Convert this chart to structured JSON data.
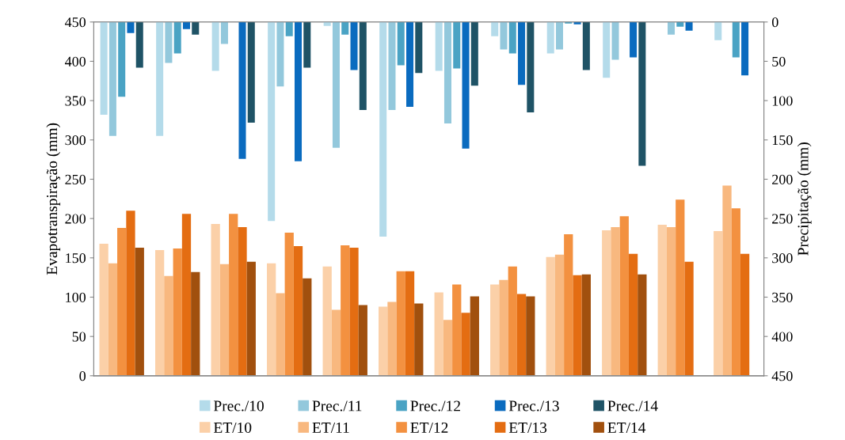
{
  "chart_data": {
    "type": "bar",
    "categories": [
      null,
      null,
      null,
      null,
      null,
      null,
      null,
      null,
      null,
      null,
      null,
      null
    ],
    "ylabel": "Evapotranspiração (mm)",
    "y2label": "Precipitação (mm)",
    "ylim": [
      0,
      450
    ],
    "yticks": [
      0,
      50,
      100,
      150,
      200,
      250,
      300,
      350,
      400,
      450
    ],
    "y2lim": [
      450,
      0
    ],
    "y2ticks": [
      0,
      50,
      100,
      150,
      200,
      250,
      300,
      350,
      400,
      450
    ],
    "tick_labels": "y",
    "grid": false,
    "legend": "bottom",
    "series": [
      {
        "name": "Prec./10",
        "axis": "y2",
        "color": "#b4dbea",
        "values": [
          118,
          145,
          62,
          253,
          5,
          273,
          62,
          18,
          40,
          71,
          null,
          23
        ]
      },
      {
        "name": "Prec./11",
        "axis": "y2",
        "color": "#93c8dc",
        "values": [
          145,
          52,
          28,
          82,
          160,
          112,
          129,
          35,
          35,
          48,
          16,
          null
        ]
      },
      {
        "name": "Prec./12",
        "axis": "y2",
        "color": "#4aa3c4",
        "values": [
          95,
          40,
          null,
          18,
          16,
          55,
          59,
          40,
          2,
          null,
          6,
          45
        ]
      },
      {
        "name": "Prec./13",
        "axis": "y2",
        "color": "#0a6bbf",
        "values": [
          14,
          9,
          174,
          177,
          61,
          108,
          161,
          80,
          3,
          45,
          11,
          68
        ]
      },
      {
        "name": "Prec./14",
        "axis": "y2",
        "color": "#1f5366",
        "values": [
          58,
          16,
          128,
          58,
          112,
          65,
          81,
          115,
          61,
          183,
          null,
          null
        ]
      },
      {
        "name": "ET/10",
        "color": "#fbd0a8",
        "values": [
          168,
          160,
          193,
          143,
          139,
          88,
          106,
          116,
          151,
          185,
          192,
          184
        ]
      },
      {
        "name": "ET/11",
        "color": "#f8b87f",
        "values": [
          143,
          127,
          142,
          105,
          84,
          94,
          71,
          122,
          154,
          189,
          189,
          242
        ]
      },
      {
        "name": "ET/12",
        "color": "#f39140",
        "values": [
          188,
          162,
          206,
          182,
          166,
          133,
          116,
          139,
          180,
          203,
          224,
          213
        ]
      },
      {
        "name": "ET/13",
        "color": "#e46d12",
        "values": [
          210,
          206,
          189,
          165,
          163,
          133,
          80,
          104,
          128,
          155,
          145,
          155
        ]
      },
      {
        "name": "ET/14",
        "color": "#a1500e",
        "values": [
          163,
          132,
          145,
          124,
          90,
          92,
          101,
          101,
          129,
          129,
          null,
          null
        ]
      }
    ]
  }
}
